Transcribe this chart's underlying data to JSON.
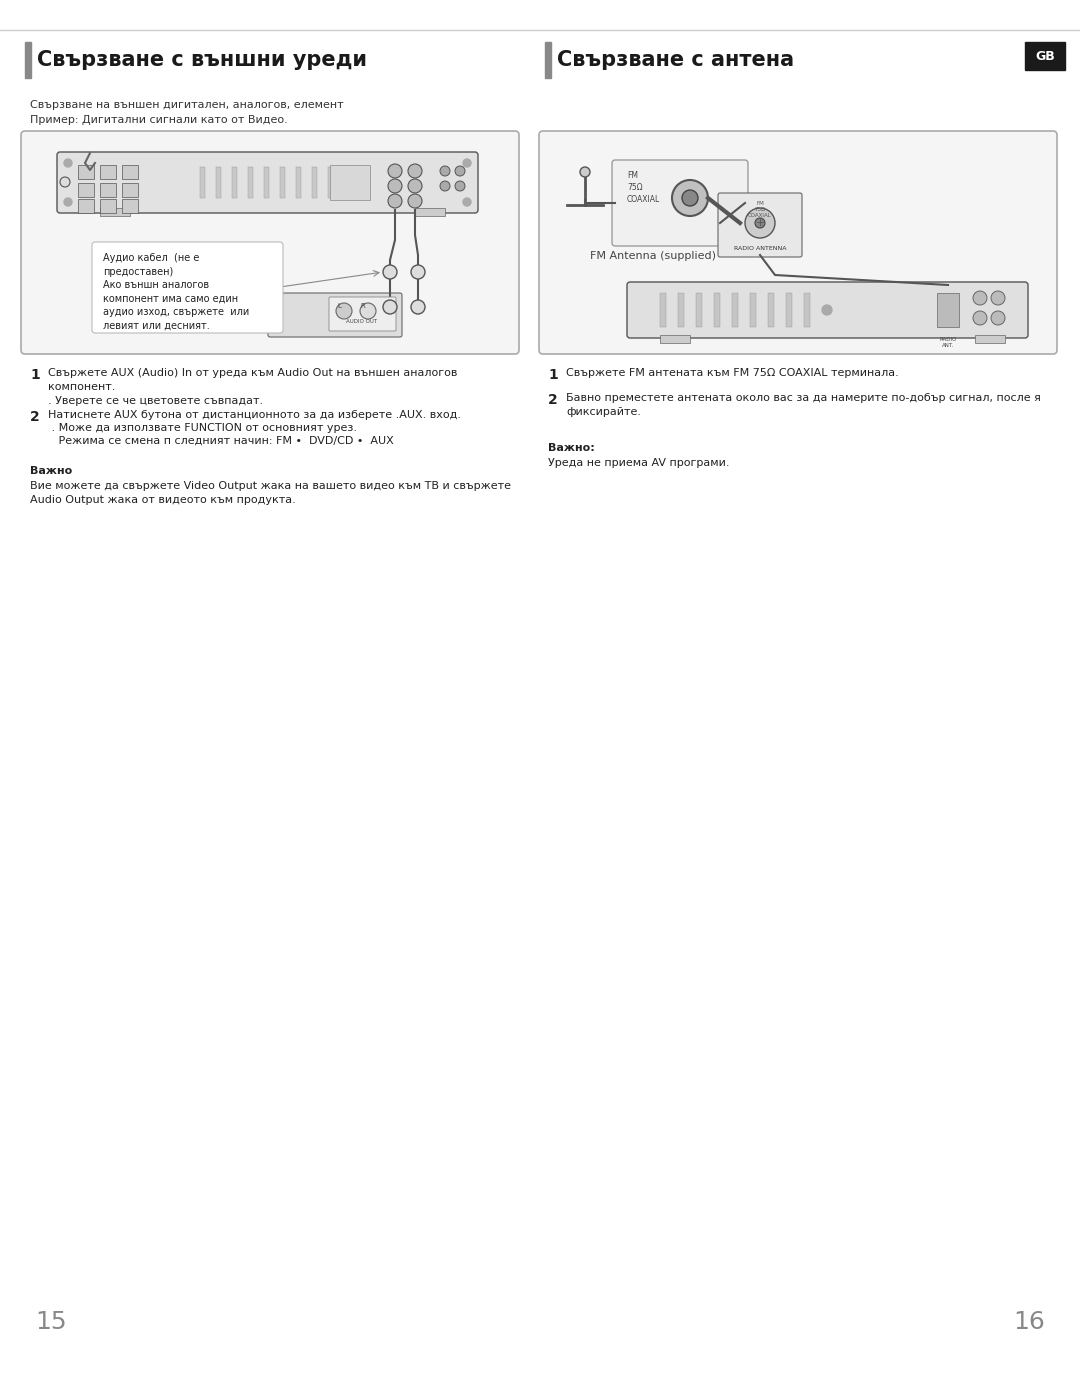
{
  "bg_color": "#ffffff",
  "left_title": "Свързване с външни уреди",
  "right_title": "Свързване с антена",
  "gb_label": "GB",
  "left_subtitle1": "Свързване на външен дигитален, аналогов, елемент",
  "left_subtitle2": "Пример: Дигитални сигнали като от Видео.",
  "audio_cable_label": "Аудио кабел  (не е\nпредоставен)\nАко външн аналогов\nкомпонент има само един\nаудио изход, свържете  или\nлевият или десният.",
  "fm_antenna_label": "FM Antenna (supplied)",
  "step1_left": "Свържете AUX (Audio) In от уреда към Audio Out на външен аналогов\nкомпонент.\n. Уверете се че цветовете съвпадат.",
  "step2_left_a": "Натиснете AUX бутона от дистанционното за да изберете .AUX. вход.",
  "step2_left_b": " . Може да използвате FUNCTION от основният урез.",
  "step2_left_c": "   Режима се смена п следният начин: FM •  DVD/CD •  AUX",
  "step1_right": "Свържете FM антената към FM 75Ω COAXIAL терминала.",
  "step2_right": "Бавно преместете антената около вас за да намерите по-добър сигнал, после я\nфиксирайте.",
  "note_left_title": "Важно",
  "note_left_body": "Вие можете да свържете Video Output жака на вашето видео към TB и свържете\nAudio Output жака от видеото към продукта.",
  "note_right_title": "Важно:",
  "note_right_body": "Уреда не приема AV програми.",
  "page_left": "15",
  "page_right": "16",
  "title_bar_color": "#808080",
  "page_num_color": "#888888"
}
